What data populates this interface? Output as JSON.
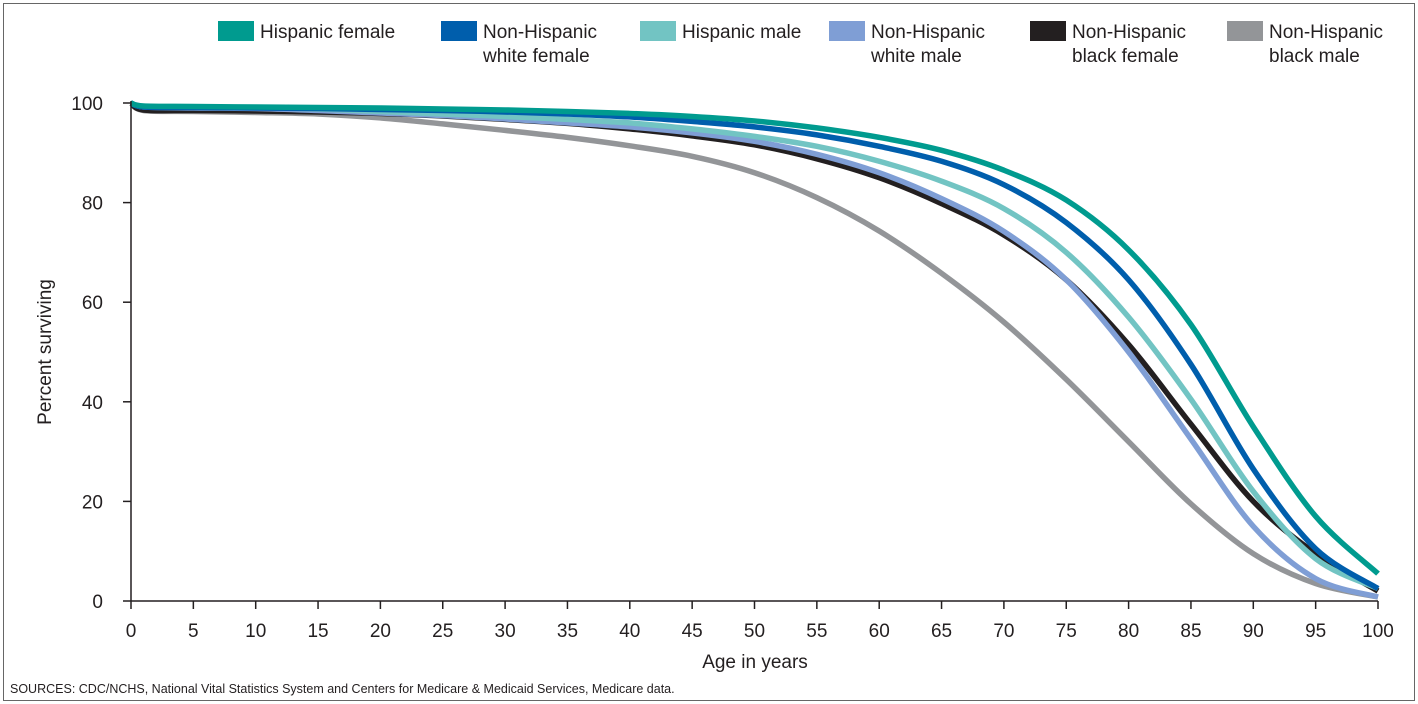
{
  "chart_data": {
    "type": "line",
    "title": "",
    "xlabel": "Age in years",
    "ylabel": "Percent surviving",
    "xlim": [
      0,
      100
    ],
    "ylim": [
      0,
      100
    ],
    "x_ticks": [
      0,
      5,
      10,
      15,
      20,
      25,
      30,
      35,
      40,
      45,
      50,
      55,
      60,
      65,
      70,
      75,
      80,
      85,
      90,
      95,
      100
    ],
    "y_ticks": [
      0,
      20,
      40,
      60,
      80,
      100
    ],
    "grid": false,
    "legend_position": "top",
    "x": [
      0,
      1,
      5,
      10,
      15,
      20,
      25,
      30,
      35,
      40,
      45,
      50,
      55,
      60,
      65,
      70,
      75,
      80,
      85,
      90,
      95,
      100
    ],
    "series": [
      {
        "name": [
          "Hispanic female"
        ],
        "color": "#009b8f",
        "values": [
          100,
          99.4,
          99.3,
          99.2,
          99.1,
          99.0,
          98.8,
          98.6,
          98.3,
          97.9,
          97.3,
          96.4,
          95.0,
          93.1,
          90.5,
          86.5,
          80.5,
          70.5,
          55.5,
          35.0,
          17.0,
          5.5
        ]
      },
      {
        "name": [
          "Non-Hispanic",
          "white female"
        ],
        "color": "#005eac",
        "values": [
          100,
          99.2,
          99.1,
          99.0,
          98.9,
          98.7,
          98.5,
          98.2,
          97.8,
          97.2,
          96.3,
          95.2,
          93.6,
          91.3,
          88.3,
          83.6,
          76.0,
          64.5,
          47.5,
          26.5,
          10.5,
          2.5
        ]
      },
      {
        "name": [
          "Hispanic male"
        ],
        "color": "#72c4c3",
        "values": [
          100,
          99.3,
          99.2,
          99.1,
          98.8,
          98.3,
          97.8,
          97.3,
          96.7,
          96.0,
          94.8,
          93.3,
          91.3,
          88.3,
          84.3,
          78.8,
          70.0,
          57.0,
          40.5,
          22.0,
          8.5,
          2.5
        ]
      },
      {
        "name": [
          "Non-Hispanic",
          "white male"
        ],
        "color": "#7f9ed5",
        "values": [
          100,
          99.2,
          99.0,
          98.9,
          98.5,
          98.0,
          97.5,
          96.8,
          96.0,
          95.2,
          94.0,
          92.3,
          89.7,
          86.0,
          80.8,
          74.2,
          64.5,
          50.0,
          32.5,
          15.0,
          4.5,
          0.8
        ]
      },
      {
        "name": [
          "Non-Hispanic",
          "black female"
        ],
        "color": "#231f20",
        "values": [
          100,
          98.6,
          98.5,
          98.4,
          98.2,
          97.9,
          97.4,
          96.7,
          95.9,
          94.8,
          93.4,
          91.6,
          88.8,
          85.0,
          79.8,
          73.5,
          64.5,
          51.5,
          35.5,
          20.0,
          9.5,
          2.0
        ]
      },
      {
        "name": [
          "Non-Hispanic",
          "black male"
        ],
        "color": "#939598",
        "values": [
          100,
          98.5,
          98.3,
          98.1,
          97.8,
          97.0,
          95.8,
          94.5,
          93.1,
          91.4,
          89.3,
          86.0,
          81.0,
          74.3,
          65.8,
          56.0,
          44.5,
          32.0,
          19.5,
          9.5,
          3.5,
          0.8
        ]
      }
    ]
  },
  "footer": {
    "sources": "SOURCES: CDC/NCHS, National Vital Statistics System and Centers for Medicare & Medicaid Services, Medicare data."
  }
}
